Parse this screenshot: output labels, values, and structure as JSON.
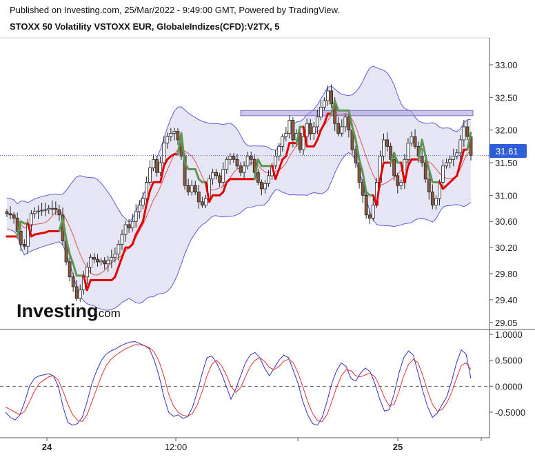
{
  "header": {
    "published": "Published on Investing.com, 25/Mar/2022 - 9:49:00 GMT, Powered by TradingView.",
    "symbol": "STOXX 50 Volatility VSTOXX EUR, GlobaleIndizes(CFD):V2TX, 5"
  },
  "logo": {
    "brand": "Investing",
    "suffix": ".com"
  },
  "colors": {
    "band_fill": "#dcdcf0",
    "band_line": "#5a5adc",
    "candle_up": "#ffffff",
    "candle_down": "#8b5a3c",
    "trail_red": "#e00000",
    "trail_green": "#5f9654",
    "ma_thin": "#e05050",
    "last_price": "#2f5fd8",
    "resistance_zone": "#a9a0dc",
    "osc_k": "#3030c0",
    "osc_d": "#e03030"
  },
  "chart_data": [
    {
      "type": "candlestick",
      "symbol": "V2TX",
      "timeframe": "5",
      "last_price_label": "31.61",
      "y_ticks": [
        "33.00",
        "32.50",
        "32.00",
        "31.50",
        "31.00",
        "30.60",
        "30.20",
        "29.80",
        "29.40",
        "29.05"
      ],
      "ylim": [
        29.0,
        33.4
      ],
      "x_ticks": [
        "24",
        "12:00",
        "25"
      ],
      "resistance_zone": [
        32.22,
        32.3
      ],
      "last_price": 31.61,
      "close": [
        30.72,
        30.7,
        30.65,
        30.45,
        30.25,
        30.22,
        30.55,
        30.72,
        30.75,
        30.76,
        30.77,
        30.78,
        30.8,
        30.8,
        30.78,
        30.7,
        30.3,
        29.98,
        29.75,
        29.6,
        29.42,
        29.55,
        29.75,
        29.9,
        30.05,
        30.02,
        29.98,
        30.0,
        29.95,
        30.0,
        30.05,
        30.1,
        30.25,
        30.4,
        30.55,
        30.5,
        30.6,
        30.75,
        30.85,
        30.95,
        31.2,
        31.42,
        31.55,
        31.35,
        31.5,
        31.8,
        31.9,
        31.95,
        31.98,
        31.85,
        31.6,
        31.15,
        31.05,
        31.15,
        31.05,
        30.9,
        30.85,
        30.95,
        31.25,
        31.35,
        31.3,
        31.2,
        31.4,
        31.55,
        31.6,
        31.55,
        31.45,
        31.35,
        31.45,
        31.6,
        31.55,
        31.35,
        31.2,
        31.1,
        31.18,
        31.3,
        31.45,
        31.6,
        31.75,
        31.9,
        31.95,
        32.15,
        31.85,
        31.95,
        31.7,
        31.9,
        32.1,
        31.95,
        32.05,
        32.2,
        32.35,
        32.45,
        32.6,
        32.4,
        32.1,
        31.95,
        32.05,
        32.2,
        32.0,
        31.7,
        31.5,
        31.2,
        31.0,
        30.7,
        30.65,
        30.85,
        31.2,
        31.6,
        31.85,
        31.75,
        31.55,
        31.3,
        31.15,
        31.2,
        31.55,
        31.8,
        31.9,
        31.75,
        31.6,
        31.5,
        31.25,
        31.05,
        30.85,
        30.95,
        31.2,
        31.45,
        31.5,
        31.55,
        31.6,
        31.65,
        31.85,
        32.05,
        31.9,
        31.61
      ],
      "series": [
        {
          "name": "",
          "role": "bollinger-upper"
        },
        {
          "name": "",
          "role": "bollinger-lower"
        },
        {
          "name": "",
          "role": "moving-average"
        },
        {
          "name": "",
          "role": "trailing-stop"
        }
      ]
    },
    {
      "type": "line",
      "panel": "oscillator",
      "y_ticks": [
        "1.0000",
        "0.5000",
        "0.0000",
        "-0.5000"
      ],
      "ylim": [
        -1.05,
        1.05
      ],
      "zero_line": 0,
      "k": [
        -0.5,
        -0.6,
        -0.65,
        -0.55,
        -0.3,
        0.0,
        0.15,
        0.2,
        0.22,
        0.24,
        0.2,
        0.0,
        -0.4,
        -0.7,
        -0.75,
        -0.72,
        -0.6,
        -0.3,
        0.05,
        0.3,
        0.5,
        0.62,
        0.68,
        0.72,
        0.78,
        0.82,
        0.85,
        0.86,
        0.82,
        0.78,
        0.72,
        0.5,
        0.2,
        -0.2,
        -0.5,
        -0.58,
        -0.55,
        -0.62,
        -0.58,
        -0.4,
        -0.1,
        0.25,
        0.55,
        0.58,
        0.45,
        0.25,
        0.0,
        -0.25,
        -0.05,
        0.2,
        0.45,
        0.6,
        0.65,
        0.55,
        0.35,
        0.2,
        0.35,
        0.5,
        0.6,
        0.55,
        0.3,
        0.05,
        -0.3,
        -0.55,
        -0.72,
        -0.75,
        -0.6,
        -0.3,
        0.05,
        0.3,
        0.45,
        0.38,
        0.15,
        0.1,
        0.25,
        0.35,
        0.28,
        0.05,
        -0.25,
        -0.48,
        -0.45,
        -0.15,
        0.25,
        0.55,
        0.68,
        0.6,
        0.25,
        -0.1,
        -0.4,
        -0.6,
        -0.52,
        -0.35,
        -0.2,
        0.1,
        0.45,
        0.7,
        0.62,
        0.15
      ],
      "d": [
        -0.4,
        -0.45,
        -0.5,
        -0.55,
        -0.48,
        -0.3,
        -0.1,
        0.05,
        0.12,
        0.18,
        0.2,
        0.12,
        -0.1,
        -0.35,
        -0.55,
        -0.65,
        -0.68,
        -0.55,
        -0.3,
        -0.05,
        0.2,
        0.4,
        0.52,
        0.6,
        0.66,
        0.72,
        0.76,
        0.8,
        0.8,
        0.78,
        0.74,
        0.66,
        0.48,
        0.2,
        -0.15,
        -0.38,
        -0.5,
        -0.56,
        -0.58,
        -0.52,
        -0.35,
        -0.1,
        0.2,
        0.42,
        0.5,
        0.4,
        0.22,
        0.0,
        -0.12,
        -0.03,
        0.18,
        0.38,
        0.5,
        0.55,
        0.48,
        0.36,
        0.32,
        0.38,
        0.48,
        0.52,
        0.45,
        0.25,
        -0.02,
        -0.3,
        -0.52,
        -0.66,
        -0.68,
        -0.55,
        -0.3,
        -0.02,
        0.2,
        0.32,
        0.3,
        0.2,
        0.18,
        0.22,
        0.25,
        0.18,
        0.0,
        -0.22,
        -0.38,
        -0.35,
        -0.1,
        0.2,
        0.42,
        0.52,
        0.45,
        0.2,
        -0.1,
        -0.35,
        -0.48,
        -0.45,
        -0.32,
        -0.12,
        0.15,
        0.4,
        0.45,
        0.32
      ]
    }
  ]
}
